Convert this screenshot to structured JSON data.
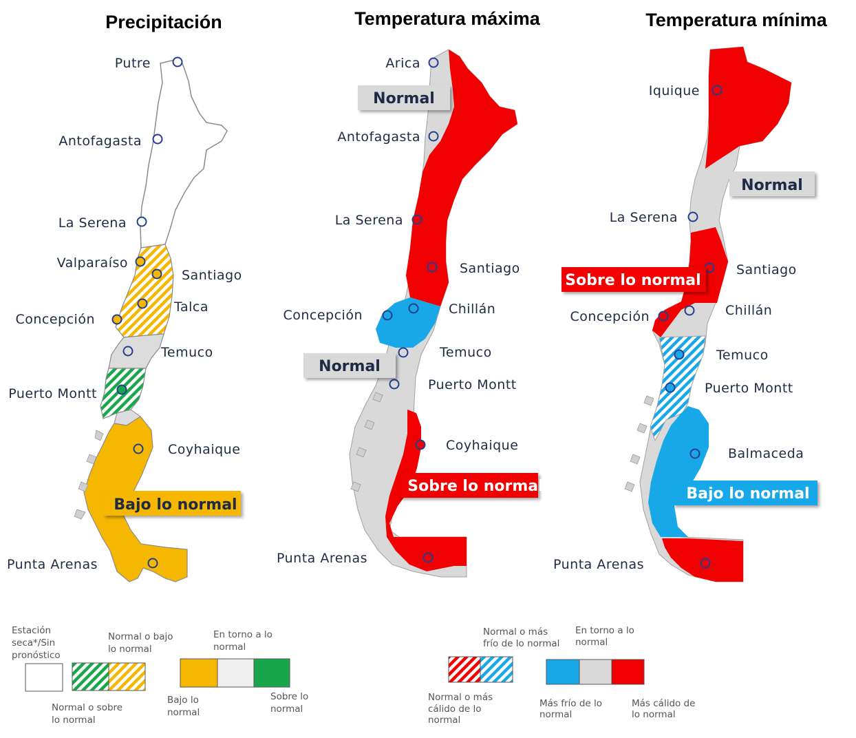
{
  "titles": {
    "precip": "Precipitación",
    "tmax": "Temperatura máxima",
    "tmin": "Temperatura mínima"
  },
  "precip": {
    "cities": [
      "Putre",
      "Antofagasta",
      "La Serena",
      "Valparaíso",
      "Santiago",
      "Talca",
      "Concepción",
      "Temuco",
      "Puerto Montt",
      "Coyhaique",
      "Punta Arenas"
    ],
    "badge": "Bajo lo normal"
  },
  "tmax": {
    "cities": [
      "Arica",
      "Antofagasta",
      "La Serena",
      "Santiago",
      "Chillán",
      "Concepción",
      "Temuco",
      "Puerto Montt",
      "Coyhaique",
      "Punta Arenas"
    ],
    "badges": [
      "Normal",
      "Normal",
      "Sobre lo normal"
    ]
  },
  "tmin": {
    "cities": [
      "Iquique",
      "La Serena",
      "Santiago",
      "Chillán",
      "Concepción",
      "Temuco",
      "Puerto Montt",
      "Balmaceda",
      "Punta Arenas"
    ],
    "badges": [
      "Normal",
      "Sobre lo normal",
      "Bajo lo normal"
    ]
  },
  "legend_precip": {
    "dry_1": "Estación",
    "dry_2": "seca*/Sin",
    "dry_3": "pronóstico",
    "nb_1": "Normal o bajo",
    "nb_2": "lo normal",
    "ns_1": "Normal o sobre",
    "ns_2": "lo normal",
    "around_1": "En torno a lo",
    "around_2": "normal",
    "below_1": "Bajo lo",
    "below_2": "normal",
    "above_1": "Sobre lo",
    "above_2": "normal"
  },
  "legend_temp": {
    "cold_1": "Normal o más",
    "cold_2": "frío de lo normal",
    "warm_1": "Normal o más",
    "warm_2": "cálido de lo",
    "warm_3": "normal",
    "around_1": "En torno a lo",
    "around_2": "normal",
    "colder_1": "Más frío de lo",
    "colder_2": "normal",
    "warmer_1": "Más cálido de",
    "warmer_2": "lo normal"
  },
  "colors": {
    "yellow": "#f5b700",
    "green": "#1aa64a",
    "gray": "#d9d9d9",
    "red": "#f00000",
    "blue": "#18a8e8",
    "navy": "#1f2a44",
    "marker": "#223d8f"
  }
}
